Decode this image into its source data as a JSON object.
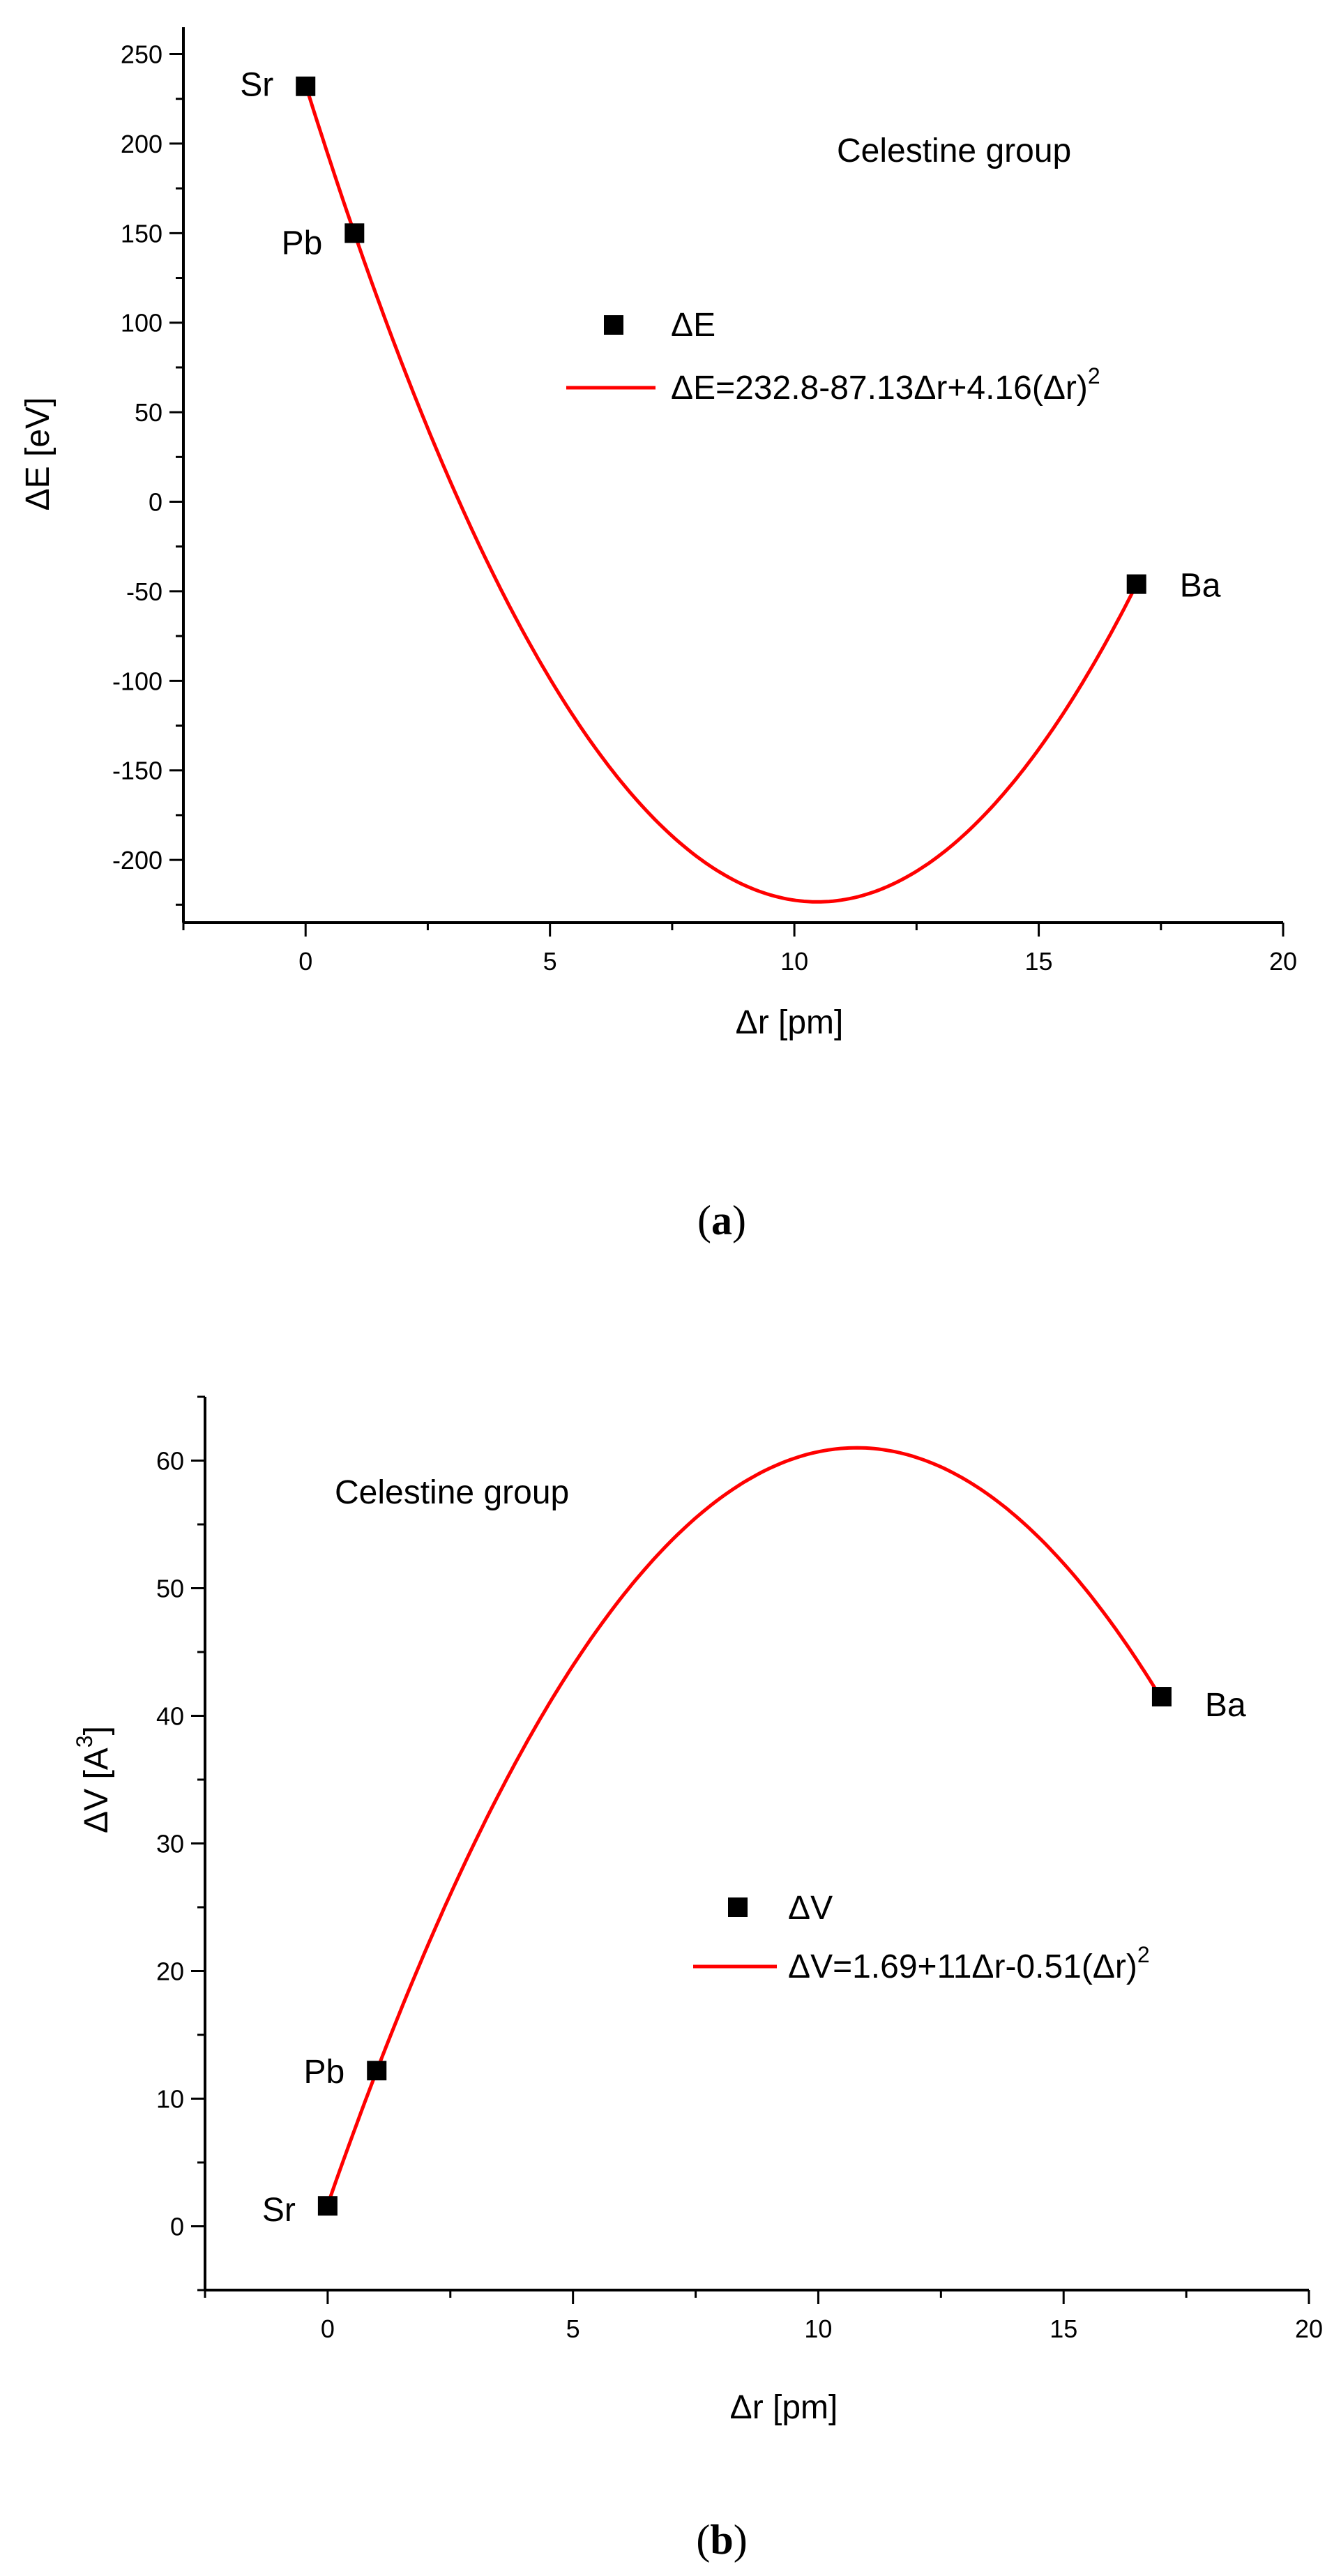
{
  "chart_data": [
    {
      "id": "a",
      "type": "scatter",
      "caption_letter": "a",
      "xlabel": "Δr [pm]",
      "ylabel": "ΔE [eV]",
      "xlim": [
        -2.5,
        20
      ],
      "ylim": [
        -235,
        265
      ],
      "x_ticks": [
        0,
        5,
        10,
        15,
        20
      ],
      "y_ticks": [
        250,
        200,
        150,
        100,
        50,
        0,
        -50,
        -100,
        -150,
        -200
      ],
      "x_minor_step": 2.5,
      "y_minor_step": 25,
      "points": [
        {
          "x": 0,
          "y": 232,
          "label": "Sr"
        },
        {
          "x": 1,
          "y": 150,
          "label": "Pb"
        },
        {
          "x": 17,
          "y": -46,
          "label": "Ba"
        }
      ],
      "fit": {
        "a": 232.8,
        "b": -87.13,
        "c": 4.16,
        "x_range": [
          0,
          17
        ]
      },
      "annotation": "Celestine group",
      "legend": {
        "points_label": "ΔE",
        "fit_label": "ΔE=232.8-87.13Δr+4.16(Δr)",
        "fit_label_sup": "2"
      },
      "colors": {
        "fit": "#ff0000",
        "points": "#000000",
        "axes": "#000000"
      }
    },
    {
      "id": "b",
      "type": "scatter",
      "caption_letter": "b",
      "xlabel": "Δr [pm]",
      "ylabel": "ΔV [A",
      "ylabel_sup": "3",
      "ylabel_close": "]",
      "xlim": [
        -2.5,
        20
      ],
      "ylim": [
        -5,
        65
      ],
      "x_ticks": [
        0,
        5,
        10,
        15,
        20
      ],
      "y_ticks": [
        60,
        50,
        40,
        30,
        20,
        10,
        0
      ],
      "x_minor_step": 2.5,
      "y_minor_step": 5,
      "points": [
        {
          "x": 0,
          "y": 1.6,
          "label": "Sr"
        },
        {
          "x": 1,
          "y": 12.2,
          "label": "Pb"
        },
        {
          "x": 17,
          "y": 41.5,
          "label": "Ba"
        }
      ],
      "fit": {
        "a": 1.69,
        "b": 11,
        "c": -0.51,
        "x_range": [
          0,
          17
        ]
      },
      "annotation": "Celestine group",
      "legend": {
        "points_label": "ΔV",
        "fit_label": "ΔV=1.69+11Δr-0.51(Δr)",
        "fit_label_sup": "2"
      },
      "colors": {
        "fit": "#ff0000",
        "points": "#000000",
        "axes": "#000000"
      }
    }
  ]
}
